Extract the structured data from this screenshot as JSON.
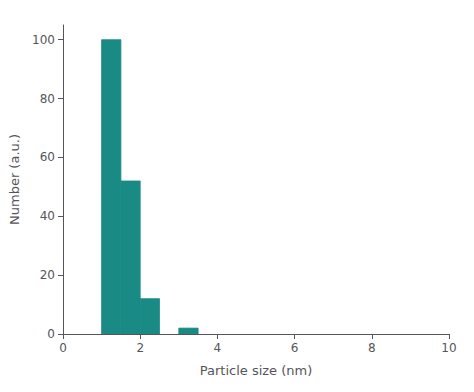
{
  "chart_data": {
    "type": "bar",
    "x": [
      1.0,
      1.5,
      2.0,
      3.0
    ],
    "width": 0.5,
    "values": [
      100,
      52,
      12,
      2
    ],
    "color": "#1a8a85",
    "xlabel": "Particle size (nm)",
    "ylabel": "Number (a.u.)",
    "xlim": [
      0,
      10
    ],
    "xticks": [
      0,
      2,
      4,
      6,
      8,
      10
    ],
    "ylim": [
      0,
      105
    ],
    "yticks": [
      0,
      20,
      40,
      60,
      80,
      100
    ],
    "grid": false
  }
}
